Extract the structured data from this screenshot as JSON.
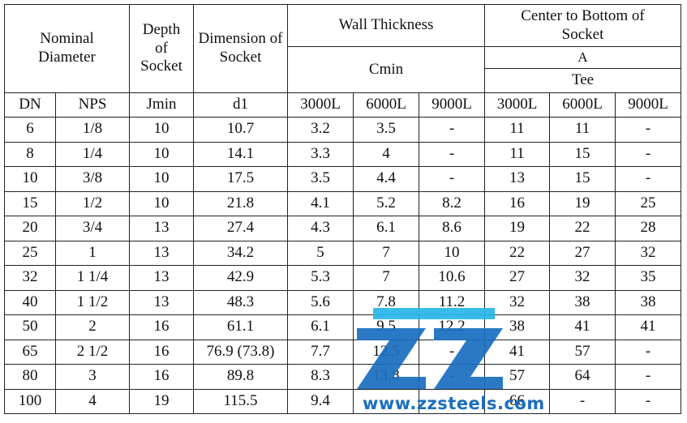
{
  "header": {
    "nominal_diameter": "Nominal Diameter",
    "depth_of_socket": "Depth of Socket",
    "dimension_of_socket": "Dimension of Socket",
    "wall_thickness": "Wall Thickness",
    "cmin": "Cmin",
    "center_to_bottom": "Center to Bottom of Socket",
    "a_label": "A",
    "tee": "Tee"
  },
  "units": {
    "dn": "DN",
    "nps": "NPS",
    "jmin": "Jmin",
    "d1": "d1",
    "wt_3000": "3000L",
    "wt_6000": "6000L",
    "wt_9000": "9000L",
    "ct_3000": "3000L",
    "ct_6000": "6000L",
    "ct_9000": "9000L"
  },
  "rows": [
    [
      "6",
      "1/8",
      "10",
      "10.7",
      "3.2",
      "3.5",
      "-",
      "11",
      "11",
      "-"
    ],
    [
      "8",
      "1/4",
      "10",
      "14.1",
      "3.3",
      "4",
      "-",
      "11",
      "15",
      "-"
    ],
    [
      "10",
      "3/8",
      "10",
      "17.5",
      "3.5",
      "4.4",
      "-",
      "13",
      "15",
      "-"
    ],
    [
      "15",
      "1/2",
      "10",
      "21.8",
      "4.1",
      "5.2",
      "8.2",
      "16",
      "19",
      "25"
    ],
    [
      "20",
      "3/4",
      "13",
      "27.4",
      "4.3",
      "6.1",
      "8.6",
      "19",
      "22",
      "28"
    ],
    [
      "25",
      "1",
      "13",
      "34.2",
      "5",
      "7",
      "10",
      "22",
      "27",
      "32"
    ],
    [
      "32",
      "1 1/4",
      "13",
      "42.9",
      "5.3",
      "7",
      "10.6",
      "27",
      "32",
      "35"
    ],
    [
      "40",
      "1 1/2",
      "13",
      "48.3",
      "5.6",
      "7.8",
      "11.2",
      "32",
      "38",
      "38"
    ],
    [
      "50",
      "2",
      "16",
      "61.1",
      "6.1",
      "9.5",
      "12.2",
      "38",
      "41",
      "41"
    ],
    [
      "65",
      "2 1/2",
      "16",
      "76.9 (73.8)",
      "7.7",
      "12.5",
      "-",
      "41",
      "57",
      "-"
    ],
    [
      "80",
      "3",
      "16",
      "89.8",
      "8.3",
      "13.8",
      "-",
      "57",
      "64",
      "-"
    ],
    [
      "100",
      "4",
      "19",
      "115.5",
      "9.4",
      "",
      "-",
      "66",
      "-",
      "-"
    ]
  ],
  "watermark": {
    "text": "www.zzsteels.com",
    "color": "#1a6ec0",
    "accent": "#29b6e8"
  }
}
